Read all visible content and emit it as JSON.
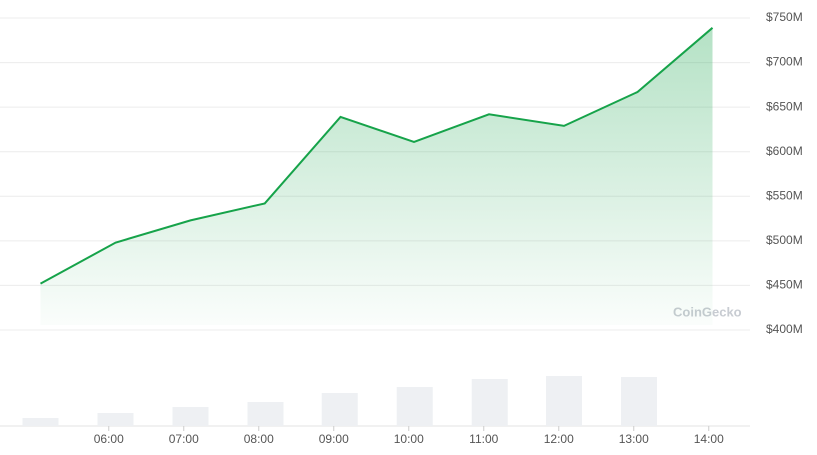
{
  "chart_data": {
    "type": "line",
    "watermark": "CoinGecko",
    "x": [
      5.09,
      6.09,
      7.09,
      8.08,
      9.09,
      10.07,
      11.07,
      12.07,
      13.05,
      14.05
    ],
    "values": [
      452,
      498,
      523,
      542,
      639,
      611,
      642,
      629,
      667,
      739
    ],
    "color": "#16a34a",
    "volume_x": [
      5.09,
      6.09,
      7.09,
      8.09,
      9.08,
      10.08,
      11.08,
      12.07,
      13.07
    ],
    "volume_values": [
      8,
      13,
      19,
      24,
      33,
      39,
      47,
      50,
      49
    ],
    "volume_color": "#eef0f3",
    "xlim": [
      4.55,
      14.55
    ],
    "xticks": [
      {
        "value": 6,
        "label": "06:00"
      },
      {
        "value": 7,
        "label": "07:00"
      },
      {
        "value": 8,
        "label": "08:00"
      },
      {
        "value": 9,
        "label": "09:00"
      },
      {
        "value": 10,
        "label": "10:00"
      },
      {
        "value": 11,
        "label": "11:00"
      },
      {
        "value": 12,
        "label": "12:00"
      },
      {
        "value": 13,
        "label": "13:00"
      },
      {
        "value": 14,
        "label": "14:00"
      }
    ],
    "ylim": [
      400,
      750
    ],
    "yticks": [
      {
        "value": 400,
        "label": "$400M"
      },
      {
        "value": 450,
        "label": "$450M"
      },
      {
        "value": 500,
        "label": "$500M"
      },
      {
        "value": 550,
        "label": "$550M"
      },
      {
        "value": 600,
        "label": "$600M"
      },
      {
        "value": 650,
        "label": "$650M"
      },
      {
        "value": 700,
        "label": "$700M"
      },
      {
        "value": 750,
        "label": "$750M"
      }
    ],
    "grid": true
  }
}
